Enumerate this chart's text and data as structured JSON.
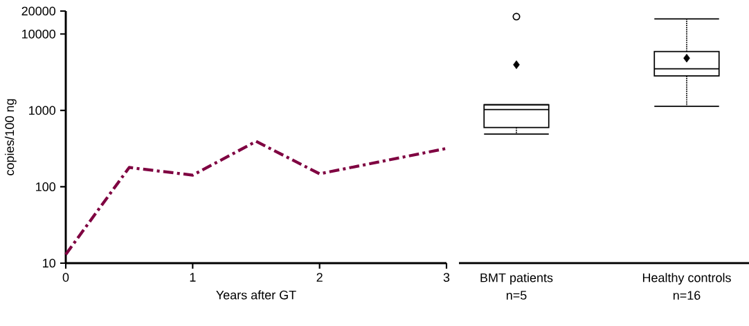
{
  "chart_data": [
    {
      "type": "line",
      "xlabel": "Years after GT",
      "ylabel": "copies/100 ng",
      "x": [
        0,
        0.5,
        1,
        1.5,
        2,
        3
      ],
      "series": [
        {
          "color": "#7f0041",
          "values": [
            13,
            179,
            142,
            393,
            148,
            318
          ]
        }
      ],
      "xlim": [
        0,
        3
      ],
      "xticks": [
        0,
        1,
        2,
        3
      ],
      "ylim": [
        10,
        20000
      ],
      "yticks": [
        10,
        100,
        1000,
        10000,
        20000
      ],
      "log": "y",
      "line_style": "dashdot"
    },
    {
      "type": "box",
      "categories": [
        "BMT patients",
        "Healthy controls"
      ],
      "boxes": [
        {
          "low": 489,
          "q1": 597,
          "median": 1028,
          "q3": 1185,
          "high": 1185,
          "mean": 3970,
          "outliers": [
            16900
          ]
        },
        {
          "low": 1130,
          "q1": 2830,
          "median": 3500,
          "q3": 5900,
          "high": 15800,
          "mean": 4840
        }
      ],
      "annotations": [
        "n=5",
        "n=16"
      ],
      "ylim": [
        10,
        20000
      ],
      "log": "y",
      "tick_labels": "x"
    }
  ]
}
